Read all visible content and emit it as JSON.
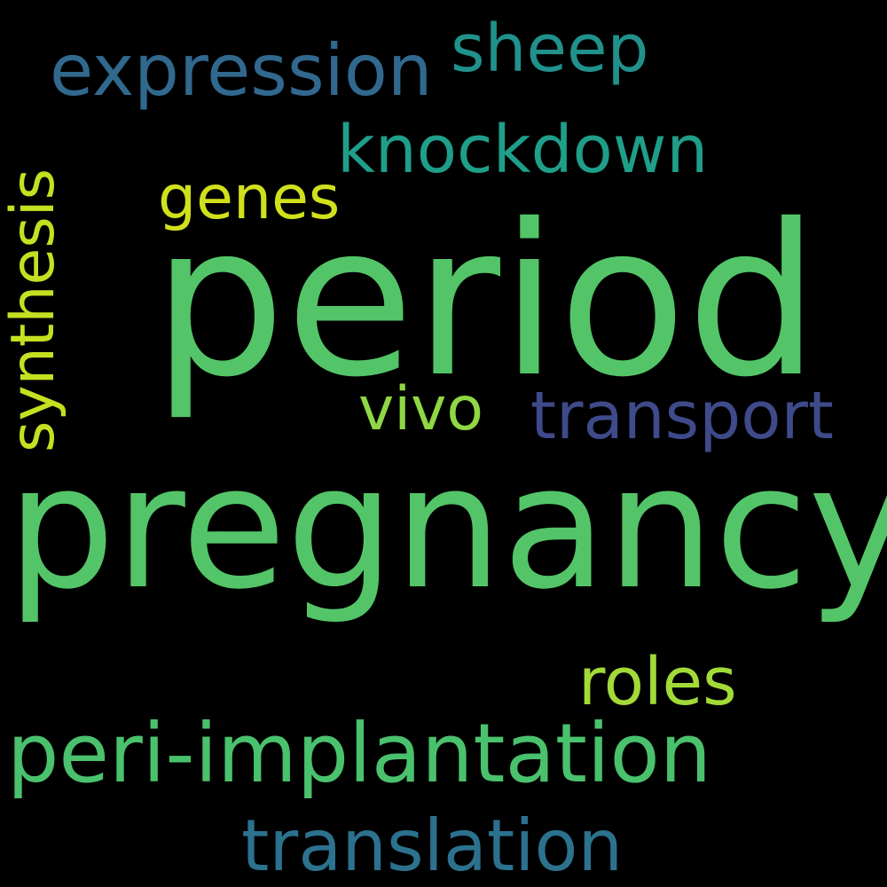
{
  "words": {
    "period": {
      "text": "period",
      "color": "#53c568"
    },
    "pregnancy": {
      "text": "pregnancy",
      "color": "#53c568"
    },
    "peri_implantation": {
      "text": "peri-implantation",
      "color": "#4ac16d"
    },
    "translation": {
      "text": "translation",
      "color": "#2c718e"
    },
    "expression": {
      "text": "expression",
      "color": "#31688e"
    },
    "sheep": {
      "text": "sheep",
      "color": "#21918c"
    },
    "knockdown": {
      "text": "knockdown",
      "color": "#1f9e89"
    },
    "genes": {
      "text": "genes",
      "color": "#d0e11c"
    },
    "vivo": {
      "text": "vivo",
      "color": "#8fd744"
    },
    "transport": {
      "text": "transport",
      "color": "#3e4a89"
    },
    "roles": {
      "text": "roles",
      "color": "#a2da37"
    },
    "synthesis": {
      "text": "synthesis",
      "color": "#c5e021"
    }
  }
}
